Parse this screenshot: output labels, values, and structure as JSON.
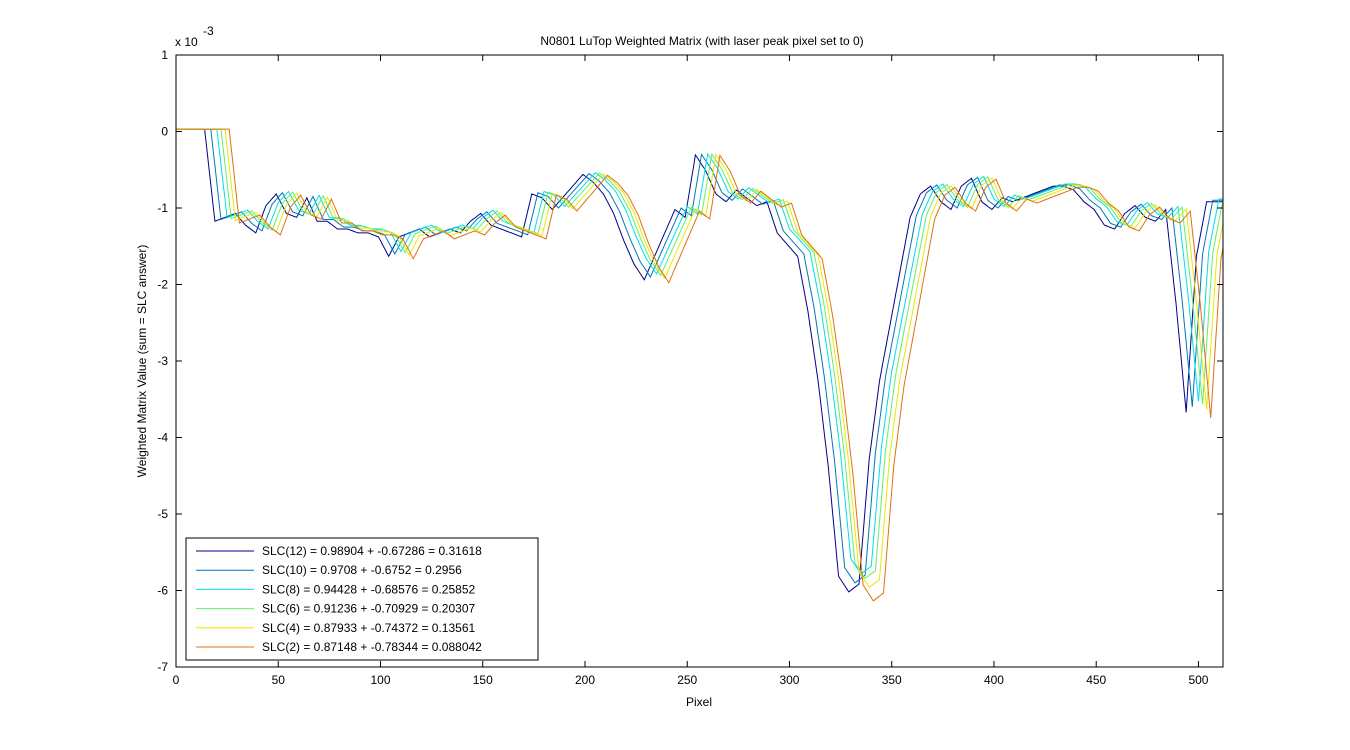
{
  "chart_data": {
    "type": "line",
    "title": "N0801   LuTop Weighted Matrix  (with laser peak pixel set to 0)",
    "xlabel": "Pixel",
    "ylabel": "Weighted Matrix Value (sum = SLC answer)",
    "y_multiplier_base": "x 10",
    "y_multiplier_exponent": "-3",
    "xlim": [
      0,
      512
    ],
    "ylim": [
      -7,
      1
    ],
    "x_ticks": [
      0,
      50,
      100,
      150,
      200,
      250,
      300,
      350,
      400,
      450,
      500
    ],
    "y_ticks": [
      1,
      0,
      -1,
      -2,
      -3,
      -4,
      -5,
      -6,
      -7
    ],
    "grid": false,
    "legend_position": "bottom-left",
    "base_curve": {
      "x": [
        0,
        5,
        10,
        15,
        20,
        25,
        30,
        35,
        40,
        45,
        50,
        55,
        60,
        65,
        70,
        75,
        80,
        85,
        90,
        95,
        100,
        105,
        110,
        115,
        120,
        125,
        130,
        135,
        140,
        145,
        150,
        155,
        160,
        165,
        170,
        175,
        180,
        185,
        190,
        195,
        200,
        205,
        210,
        215,
        220,
        225,
        230,
        235,
        240,
        245,
        250,
        255,
        260,
        265,
        270,
        275,
        280,
        285,
        290,
        295,
        300,
        305,
        310,
        315,
        320,
        325,
        330,
        335,
        340,
        345,
        350,
        355,
        360,
        365,
        370,
        375,
        380,
        385,
        390,
        395,
        400,
        405,
        410,
        415,
        420,
        425,
        430,
        435,
        440,
        445,
        450,
        455,
        460,
        465,
        470,
        475,
        480,
        485,
        490,
        495,
        500,
        505,
        510,
        512
      ],
      "y": [
        0.0,
        0.02,
        0.03,
        0.03,
        0.03,
        -1.15,
        -1.1,
        -1.05,
        -1.2,
        -1.3,
        -0.95,
        -0.8,
        -1.05,
        -1.1,
        -0.85,
        -1.15,
        -1.15,
        -1.25,
        -1.25,
        -1.3,
        -1.3,
        -1.35,
        -1.6,
        -1.35,
        -1.3,
        -1.25,
        -1.35,
        -1.3,
        -1.25,
        -1.3,
        -1.15,
        -1.05,
        -1.2,
        -1.25,
        -1.3,
        -1.35,
        -0.8,
        -0.85,
        -1.0,
        -0.85,
        -0.7,
        -0.55,
        -0.65,
        -0.8,
        -1.05,
        -1.4,
        -1.7,
        -1.9,
        -1.6,
        -1.3,
        -1.0,
        -1.1,
        -0.3,
        -0.5,
        -0.8,
        -0.9,
        -0.75,
        -0.85,
        -0.95,
        -0.9,
        -1.3,
        -1.45,
        -1.6,
        -2.3,
        -3.2,
        -4.3,
        -5.7,
        -5.9,
        -5.8,
        -4.2,
        -3.2,
        -2.5,
        -1.8,
        -1.1,
        -0.8,
        -0.7,
        -0.9,
        -1.0,
        -0.7,
        -0.6,
        -0.9,
        -1.0,
        -0.85,
        -0.9,
        -0.85,
        -0.8,
        -0.75,
        -0.7,
        -0.7,
        -0.75,
        -0.9,
        -1.0,
        -1.2,
        -1.25,
        -1.05,
        -0.95,
        -1.1,
        -1.15,
        -1.0,
        -2.2,
        -3.6,
        -1.6,
        -0.9,
        -0.9
      ]
    },
    "series": [
      {
        "name": "SLC(12) = 0.98904 + -0.67286 = 0.31618",
        "color": "#00008B",
        "shift": -6,
        "scale": 1.02
      },
      {
        "name": "SLC(10) = 0.9708 + -0.6752 = 0.2956",
        "color": "#0077B6",
        "shift": -3,
        "scale": 1.0
      },
      {
        "name": "SLC(8) = 0.94428 + -0.68576 = 0.25852",
        "color": "#00DDEE",
        "shift": 0,
        "scale": 0.98
      },
      {
        "name": "SLC(6) = 0.91236 + -0.70929 = 0.20307",
        "color": "#66EE66",
        "shift": 2,
        "scale": 0.99
      },
      {
        "name": "SLC(4) = 0.87933 + -0.74372 = 0.13561",
        "color": "#E8E800",
        "shift": 4,
        "scale": 1.01
      },
      {
        "name": "SLC(2) = 0.87148 + -0.78344 = 0.088042",
        "color": "#E07010",
        "shift": 6,
        "scale": 1.04
      }
    ]
  }
}
